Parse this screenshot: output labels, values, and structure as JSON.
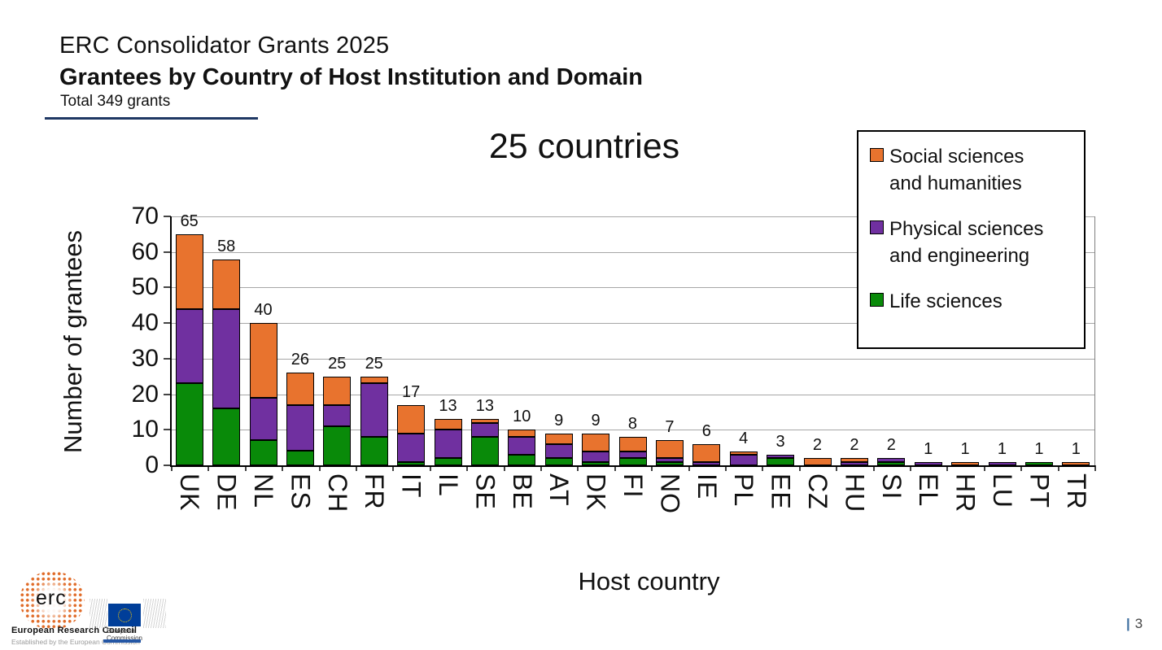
{
  "header": {
    "line1": "ERC Consolidator Grants 2025",
    "line2": "Grantees by Country of Host Institution and Domain",
    "line3": "Total 349 grants",
    "rule_color": "#1F3864"
  },
  "chart_heading": "25 countries",
  "chart_data": {
    "type": "bar",
    "stacked": true,
    "title": "25 countries",
    "xlabel": "Host country",
    "ylabel": "Number of grantees",
    "ylim": [
      0,
      70
    ],
    "yticks": [
      0,
      10,
      20,
      30,
      40,
      50,
      60,
      70
    ],
    "grid": true,
    "legend_position": "upper right",
    "categories": [
      "UK",
      "DE",
      "NL",
      "ES",
      "CH",
      "FR",
      "IT",
      "IL",
      "SE",
      "BE",
      "AT",
      "DK",
      "FI",
      "NO",
      "IE",
      "PL",
      "EE",
      "CZ",
      "HU",
      "SI",
      "EL",
      "HR",
      "LU",
      "PT",
      "TR"
    ],
    "totals": [
      65,
      58,
      40,
      26,
      25,
      25,
      17,
      13,
      13,
      10,
      9,
      9,
      8,
      7,
      6,
      4,
      3,
      2,
      2,
      2,
      1,
      1,
      1,
      1,
      1
    ],
    "series": [
      {
        "name": "Life sciences",
        "color": "#098A09",
        "values": [
          23,
          16,
          7,
          4,
          11,
          8,
          1,
          2,
          8,
          3,
          2,
          1,
          2,
          1,
          0,
          0,
          2,
          0,
          0,
          1,
          0,
          0,
          0,
          1,
          0
        ]
      },
      {
        "name": "Physical sciences and engineering",
        "color": "#7030A0",
        "values": [
          21,
          28,
          12,
          13,
          6,
          15,
          8,
          8,
          4,
          5,
          4,
          3,
          2,
          1,
          1,
          3,
          1,
          0,
          1,
          1,
          1,
          0,
          1,
          0,
          0
        ]
      },
      {
        "name": "Social sciences and humanities",
        "color": "#E8732E",
        "values": [
          21,
          14,
          21,
          9,
          8,
          2,
          8,
          3,
          1,
          2,
          3,
          5,
          4,
          5,
          5,
          1,
          0,
          2,
          1,
          0,
          0,
          1,
          0,
          0,
          1
        ]
      }
    ]
  },
  "legend": {
    "items": [
      {
        "lines": [
          "Social sciences",
          "and humanities"
        ],
        "color": "#E8732E"
      },
      {
        "lines": [
          "Physical sciences",
          "and engineering"
        ],
        "color": "#7030A0"
      },
      {
        "lines": [
          "Life sciences"
        ],
        "color": "#098A09"
      }
    ]
  },
  "colors": {
    "gridline": "#A6A6A6",
    "axis": "#000000",
    "plot_right_border": "#808080",
    "eu_flag_blue": "#003E99",
    "eu_star_yellow": "#FFCC00",
    "ec_bar_blue": "#2456A4"
  },
  "footer": {
    "erc_logo_text": "erc",
    "erc_name": "European Research Council",
    "erc_sub": "Established by the European Commission",
    "ec_name_line1": "European",
    "ec_name_line2": "Commission",
    "page_separator": "|",
    "page_number": "3"
  }
}
